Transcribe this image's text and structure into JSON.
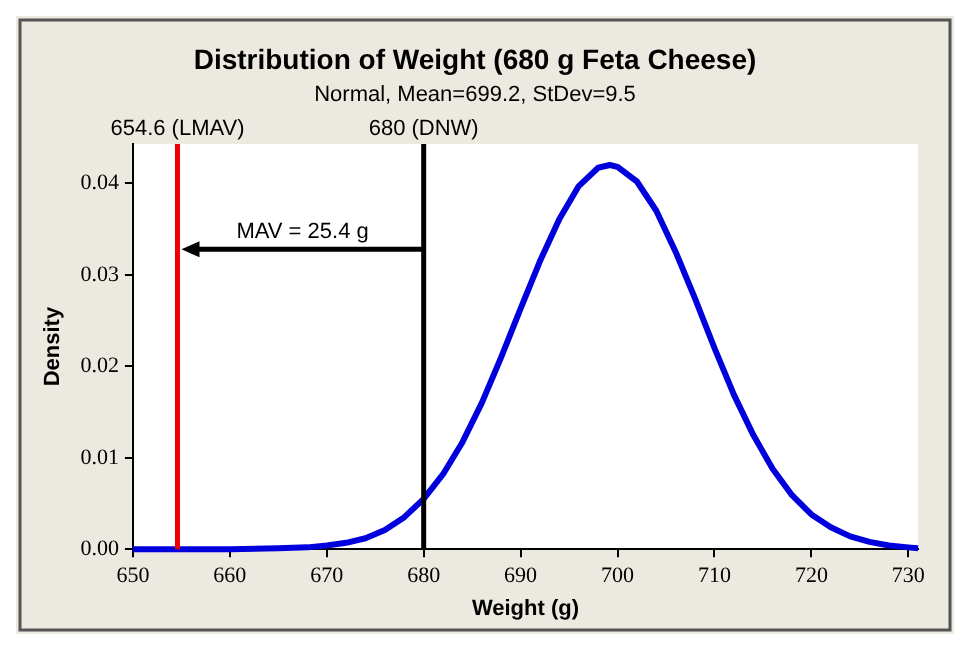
{
  "chart_data": {
    "type": "line",
    "title": "Distribution of Weight (680 g Feta Cheese)",
    "subtitle": "Normal, Mean=699.2, StDev=9.5",
    "xlabel": "Weight (g)",
    "ylabel": "Density",
    "series": [
      {
        "color": "#0000dd",
        "x": [
          650,
          660,
          665,
          668,
          670,
          672,
          674,
          676,
          678,
          680,
          682,
          684,
          686,
          688,
          690,
          692,
          694,
          696,
          698,
          699.2,
          700,
          702,
          704,
          706,
          708,
          710,
          712,
          714,
          716,
          718,
          720,
          722,
          724,
          726,
          728,
          730,
          731
        ],
        "values": [
          0,
          0,
          0.0001,
          0.0002,
          0.0004,
          0.0007,
          0.0012,
          0.0021,
          0.0035,
          0.0055,
          0.0082,
          0.0117,
          0.016,
          0.021,
          0.0263,
          0.0315,
          0.0361,
          0.0397,
          0.0417,
          0.042,
          0.0418,
          0.0402,
          0.037,
          0.0325,
          0.0274,
          0.022,
          0.0169,
          0.0125,
          0.0088,
          0.0059,
          0.0038,
          0.0024,
          0.0014,
          0.0008,
          0.0004,
          0.0002,
          0.0001
        ]
      }
    ],
    "xlim": [
      650,
      731
    ],
    "xticks": [
      650,
      660,
      670,
      680,
      690,
      700,
      710,
      720,
      730
    ],
    "ylim": [
      0,
      0.0443
    ],
    "yticks": [
      {
        "value": 0,
        "label": "0.00"
      },
      {
        "value": 0.01,
        "label": "0.01"
      },
      {
        "value": 0.02,
        "label": "0.02"
      },
      {
        "value": 0.03,
        "label": "0.03"
      },
      {
        "value": 0.04,
        "label": "0.04"
      }
    ],
    "ref_lines": [
      {
        "axis": "x",
        "value": 654.6,
        "label": "654.6 (LMAV)",
        "color": "#ee0000"
      },
      {
        "axis": "x",
        "value": 680,
        "label": "680 (DNW)",
        "color": "#000000"
      }
    ],
    "annotations": [
      "MAV = 25.4 g"
    ],
    "grid": false,
    "legend": false,
    "marker": "none",
    "line_style": "solid"
  }
}
